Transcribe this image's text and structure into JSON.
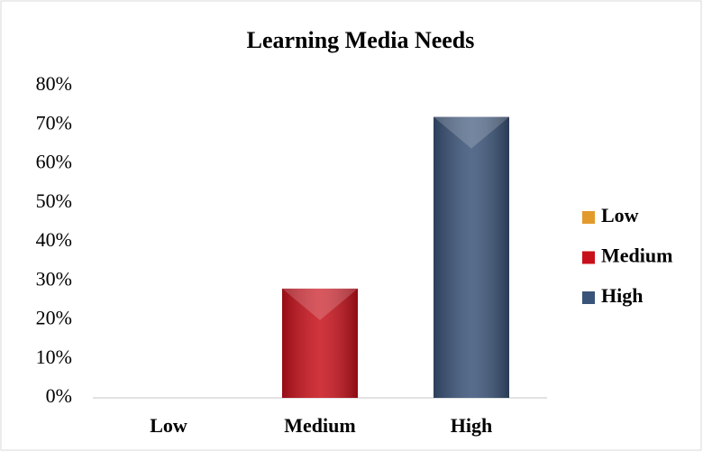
{
  "chart_data": {
    "type": "bar",
    "title": "Learning Media Needs",
    "categories": [
      "Low",
      "Medium",
      "High"
    ],
    "values": [
      0,
      28,
      72
    ],
    "colors": [
      "#e39a2c",
      "#c8101a",
      "#3a5378"
    ],
    "ylim": [
      0,
      80
    ],
    "yticks": [
      {
        "value": 0,
        "label": "0%"
      },
      {
        "value": 10,
        "label": "10%"
      },
      {
        "value": 20,
        "label": "20%"
      },
      {
        "value": 30,
        "label": "30%"
      },
      {
        "value": 40,
        "label": "40%"
      },
      {
        "value": 50,
        "label": "50%"
      },
      {
        "value": 60,
        "label": "60%"
      },
      {
        "value": 70,
        "label": "70%"
      },
      {
        "value": 80,
        "label": "80%"
      }
    ],
    "grid": false,
    "legend": "right"
  }
}
